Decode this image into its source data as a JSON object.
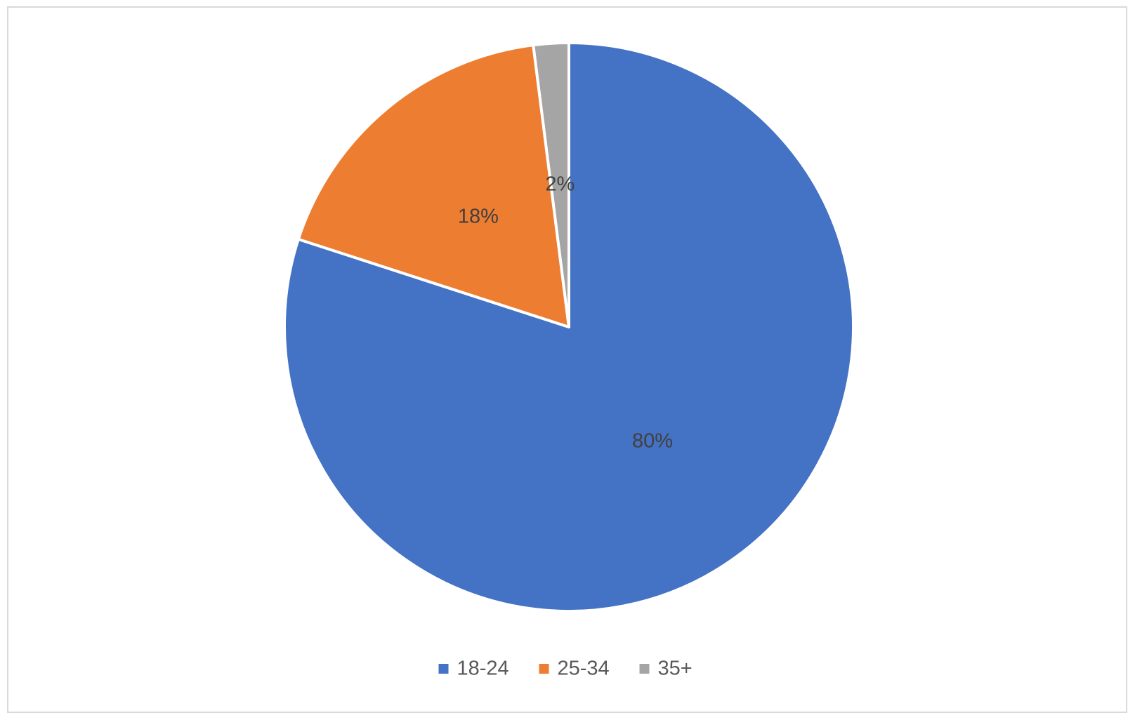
{
  "chart_data": {
    "type": "pie",
    "categories": [
      "18-24",
      "25-34",
      "35+"
    ],
    "values": [
      80,
      18,
      2
    ],
    "value_labels": [
      "80%",
      "18%",
      "2%"
    ],
    "colors": [
      "#4472c4",
      "#ed7d31",
      "#a5a5a5"
    ],
    "legend": "bottom"
  }
}
